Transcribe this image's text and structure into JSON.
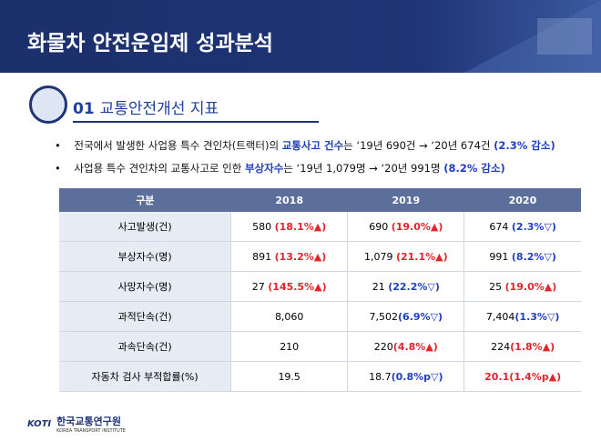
{
  "header": {
    "title": "화물차 안전운임제 성과분석"
  },
  "section": {
    "number": "01",
    "title": "교통안전개선 지표"
  },
  "bullets": [
    [
      {
        "text": "전국에서 발생한 사업용 특수 견인차(트랙터)의 "
      },
      {
        "text": "교통사고 건수",
        "color": "#1f3fbf"
      },
      {
        "text": "는 ‘19년 690건 → ‘20년 674건 "
      },
      {
        "text": "(2.3% 감소)",
        "color": "#1f3fbf"
      }
    ],
    [
      {
        "text": "사업용 특수 견인차의 교통사고로 인한 "
      },
      {
        "text": "부상자수",
        "color": "#1f3fbf"
      },
      {
        "text": "는 ‘19년 1,079명 → ‘20년 991명 "
      },
      {
        "text": "(8.2% 감소)",
        "color": "#1f3fbf"
      }
    ]
  ],
  "table": {
    "header": [
      "구분",
      "2018",
      "2019",
      "2020"
    ],
    "rows": [
      [
        [
          {
            "text": "사고발생(건)"
          }
        ],
        [
          {
            "text": "580 "
          },
          {
            "text": "(18.1%▲)",
            "color": "#e0262c"
          }
        ],
        [
          {
            "text": "690 "
          },
          {
            "text": "(19.0%▲)",
            "color": "#e0262c"
          }
        ],
        [
          {
            "text": "674 "
          },
          {
            "text": "(2.3%▽)",
            "color": "#1f3fbf"
          }
        ]
      ],
      [
        [
          {
            "text": "부상자수(명)"
          }
        ],
        [
          {
            "text": "891 "
          },
          {
            "text": "(13.2%▲)",
            "color": "#e0262c"
          }
        ],
        [
          {
            "text": "1,079 "
          },
          {
            "text": "(21.1%▲)",
            "color": "#e0262c"
          }
        ],
        [
          {
            "text": "991 "
          },
          {
            "text": "(8.2%▽)",
            "color": "#1f3fbf"
          }
        ]
      ],
      [
        [
          {
            "text": "사망자수(명)"
          }
        ],
        [
          {
            "text": "27 "
          },
          {
            "text": "(145.5%▲)",
            "color": "#e0262c"
          }
        ],
        [
          {
            "text": "21 "
          },
          {
            "text": "(22.2%▽)",
            "color": "#1f3fbf"
          }
        ],
        [
          {
            "text": "25 "
          },
          {
            "text": "(19.0%▲)",
            "color": "#e0262c"
          }
        ]
      ],
      [
        [
          {
            "text": "과적단속(건)"
          }
        ],
        [
          {
            "text": "8,060"
          }
        ],
        [
          {
            "text": "7,502"
          },
          {
            "text": "(6.9%▽)",
            "color": "#1f3fbf"
          }
        ],
        [
          {
            "text": "7,404"
          },
          {
            "text": "(1.3%▽)",
            "color": "#1f3fbf"
          }
        ]
      ],
      [
        [
          {
            "text": "과속단속(건)"
          }
        ],
        [
          {
            "text": "210"
          }
        ],
        [
          {
            "text": "220"
          },
          {
            "text": "(4.8%▲)",
            "color": "#e0262c"
          }
        ],
        [
          {
            "text": "224"
          },
          {
            "text": "(1.8%▲)",
            "color": "#e0262c"
          }
        ]
      ],
      [
        [
          {
            "text": "자동차 검사 부적합률(%)"
          }
        ],
        [
          {
            "text": "19.5"
          }
        ],
        [
          {
            "text": "18.7"
          },
          {
            "text": "(0.8%p▽)",
            "color": "#1f3fbf"
          }
        ],
        [
          {
            "text": "20.1(1.4%p▲)",
            "color": "#e0262c"
          }
        ]
      ]
    ]
  },
  "footer": {
    "mark": "KOTI",
    "name": "한국교통연구원",
    "subtitle": "KOREA TRANSPORT INSTITUTE"
  }
}
